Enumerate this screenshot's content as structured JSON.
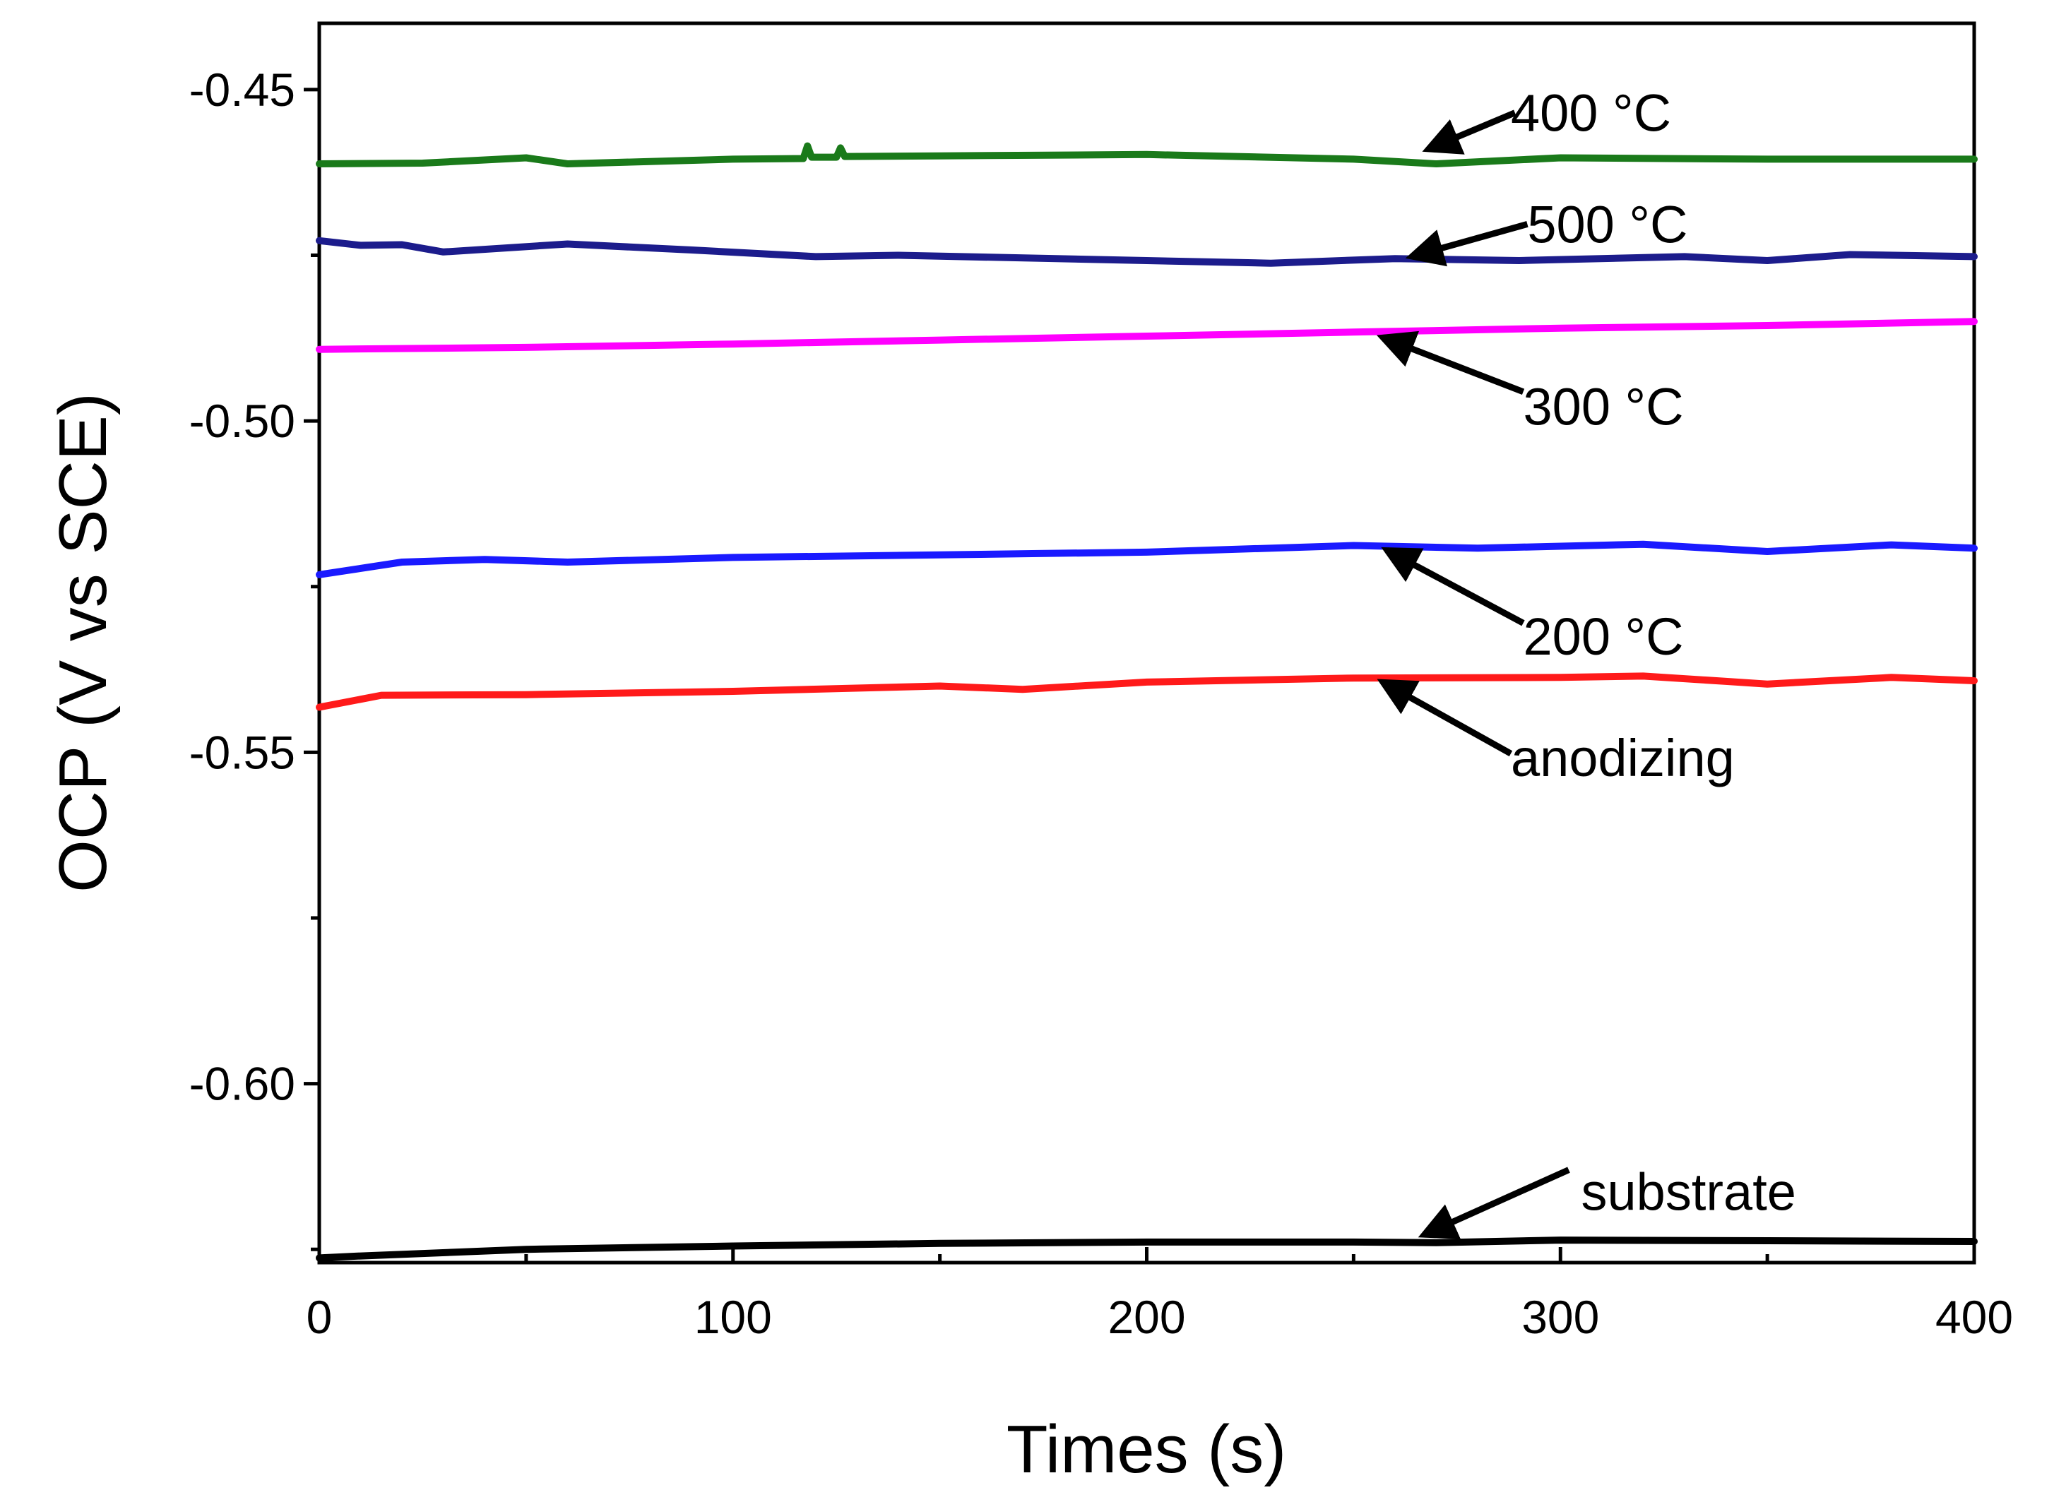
{
  "chart_data": {
    "type": "line",
    "title": "",
    "xlabel": "Times (s)",
    "ylabel": "OCP (V vs SCE)",
    "xlim": [
      0,
      400
    ],
    "ylim": [
      -0.627,
      -0.44
    ],
    "xticks": [
      0,
      100,
      200,
      300,
      400
    ],
    "xtick_labels": [
      "0",
      "100",
      "200",
      "300",
      "400"
    ],
    "xminor": [
      50,
      150,
      250,
      350
    ],
    "yticks": [
      -0.45,
      -0.5,
      -0.55,
      -0.6
    ],
    "ytick_labels": [
      "-0.45",
      "-0.50",
      "-0.55",
      "-0.60"
    ],
    "yminor": [
      -0.475,
      -0.525,
      -0.575,
      -0.625
    ],
    "grid": false,
    "legend": "none",
    "series": [
      {
        "name": "400 °C",
        "color": "#1a7a1a",
        "x": [
          0,
          25,
          50,
          60,
          100,
          117,
          118,
          119,
          125,
          126,
          127,
          150,
          200,
          250,
          270,
          300,
          350,
          400
        ],
        "y": [
          -0.4612,
          -0.4611,
          -0.4603,
          -0.4612,
          -0.4605,
          -0.4604,
          -0.4585,
          -0.4602,
          -0.4602,
          -0.4588,
          -0.4601,
          -0.46,
          -0.4598,
          -0.4605,
          -0.4612,
          -0.4603,
          -0.4605,
          -0.4605
        ]
      },
      {
        "name": "500 °C",
        "color": "#1c1c8c",
        "x": [
          0,
          10,
          20,
          30,
          60,
          90,
          120,
          140,
          200,
          230,
          260,
          290,
          330,
          350,
          370,
          400
        ],
        "y": [
          -0.4728,
          -0.4735,
          -0.4734,
          -0.4745,
          -0.4733,
          -0.4742,
          -0.4752,
          -0.475,
          -0.4758,
          -0.4762,
          -0.4755,
          -0.4758,
          -0.4752,
          -0.4758,
          -0.4749,
          -0.4752
        ]
      },
      {
        "name": "300 °C",
        "color": "#ff00ff",
        "x": [
          0,
          50,
          100,
          150,
          200,
          250,
          300,
          350,
          400
        ],
        "y": [
          -0.4892,
          -0.4889,
          -0.4884,
          -0.4878,
          -0.4872,
          -0.4866,
          -0.486,
          -0.4856,
          -0.485
        ]
      },
      {
        "name": "200 °C",
        "color": "#1a1aff",
        "x": [
          0,
          20,
          40,
          60,
          100,
          150,
          200,
          250,
          280,
          320,
          350,
          380,
          400
        ],
        "y": [
          -0.5232,
          -0.5213,
          -0.5209,
          -0.5213,
          -0.5206,
          -0.5202,
          -0.5198,
          -0.5188,
          -0.5192,
          -0.5186,
          -0.5197,
          -0.5187,
          -0.5192
        ]
      },
      {
        "name": "anodizing",
        "color": "#ff1a1a",
        "x": [
          0,
          15,
          50,
          100,
          150,
          170,
          200,
          250,
          300,
          320,
          340,
          350,
          380,
          400
        ],
        "y": [
          -0.5432,
          -0.5414,
          -0.5413,
          -0.5408,
          -0.54,
          -0.5405,
          -0.5394,
          -0.5388,
          -0.5387,
          -0.5385,
          -0.5393,
          -0.5397,
          -0.5387,
          -0.5392
        ]
      },
      {
        "name": "substrate",
        "color": "#000000",
        "x": [
          0,
          10,
          50,
          100,
          150,
          200,
          250,
          270,
          300,
          350,
          400
        ],
        "y": [
          -0.6263,
          -0.626,
          -0.625,
          -0.6245,
          -0.6241,
          -0.6239,
          -0.6239,
          -0.624,
          -0.6236,
          -0.6237,
          -0.6238
        ]
      }
    ],
    "annotations": [
      {
        "text": "400 °C",
        "text_x": 288,
        "text_y": -0.4535,
        "tail_x": 289,
        "tail_y": -0.4535,
        "head_x": 268,
        "head_y": -0.459
      },
      {
        "text": "500 °C",
        "text_x": 292,
        "text_y": -0.4703,
        "tail_x": 292,
        "tail_y": -0.4703,
        "head_x": 264,
        "head_y": -0.4752
      },
      {
        "text": "300 °C",
        "text_x": 291,
        "text_y": -0.4978,
        "tail_x": 291,
        "tail_y": -0.4956,
        "head_x": 257,
        "head_y": -0.4874
      },
      {
        "text": "200 °C",
        "text_x": 291,
        "text_y": -0.5325,
        "tail_x": 291,
        "tail_y": -0.5305,
        "head_x": 258,
        "head_y": -0.5195
      },
      {
        "text": "anodizing",
        "text_x": 288,
        "text_y": -0.5508,
        "tail_x": 288,
        "tail_y": -0.5502,
        "head_x": 257,
        "head_y": -0.5394
      },
      {
        "text": "substrate",
        "text_x": 305,
        "text_y": -0.6163,
        "tail_x": 302,
        "tail_y": -0.613,
        "head_x": 267,
        "head_y": -0.6228
      }
    ]
  }
}
